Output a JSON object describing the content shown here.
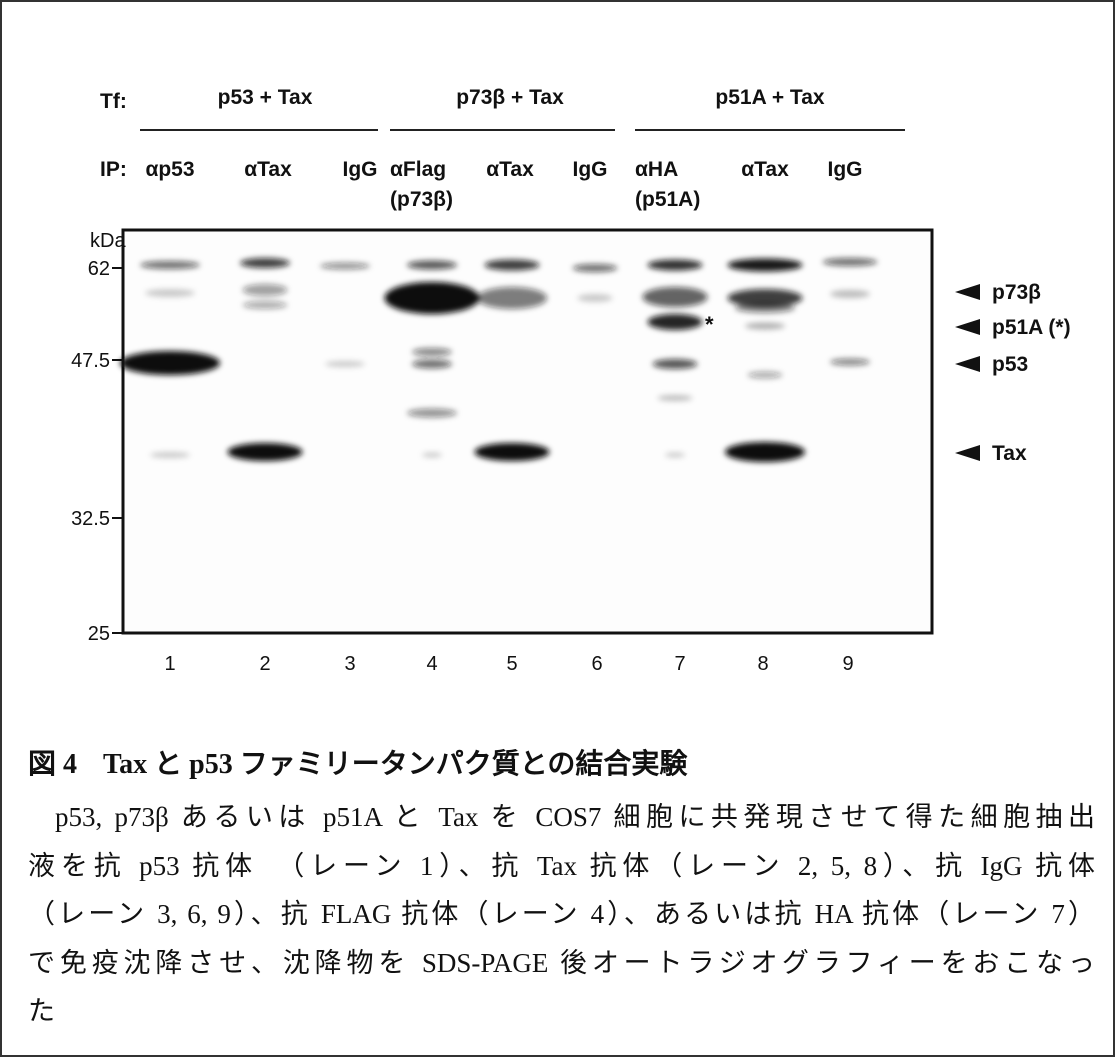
{
  "figure": {
    "tf_label": "Tf:",
    "groups": [
      "p53 + Tax",
      "p73β + Tax",
      "p51A + Tax"
    ],
    "ip_label": "IP:",
    "lanes": [
      {
        "ip": [
          "αp53"
        ],
        "number": 1
      },
      {
        "ip": [
          "αTax"
        ],
        "number": 2
      },
      {
        "ip": [
          "IgG"
        ],
        "number": 3
      },
      {
        "ip": [
          "αFlag",
          "(p73β)"
        ],
        "number": 4
      },
      {
        "ip": [
          "αTax"
        ],
        "number": 5
      },
      {
        "ip": [
          "IgG"
        ],
        "number": 6
      },
      {
        "ip": [
          "αHA",
          "(p51A)"
        ],
        "number": 7
      },
      {
        "ip": [
          "αTax"
        ],
        "number": 8
      },
      {
        "ip": [
          "IgG"
        ],
        "number": 9
      }
    ],
    "mw_unit": "kDa",
    "mw_markers": [
      "62",
      "47.5",
      "32.5",
      "25"
    ],
    "band_labels": [
      "p73β",
      "p51A (*)",
      "p53",
      "Tax"
    ],
    "asterisk": "*"
  },
  "caption": {
    "label": "図 4",
    "title": "Tax と p53 ファミリータンパク質との結合実験",
    "lines": [
      "p53, p73β あるいは p51A と Tax を COS7 細胞に共発現させて得た細胞抽出",
      "液を抗 p53 抗体　（レーン 1）、抗 Tax 抗体（レーン 2, 5, 8）、抗 IgG 抗体",
      "（レーン 3, 6, 9）、抗 FLAG 抗体（レーン 4）、あるいは抗 HA 抗体（レーン 7）",
      "で免疫沈降させ、沈降物を SDS-PAGE 後オートラジオグラフィーをおこなっ",
      "た"
    ]
  }
}
